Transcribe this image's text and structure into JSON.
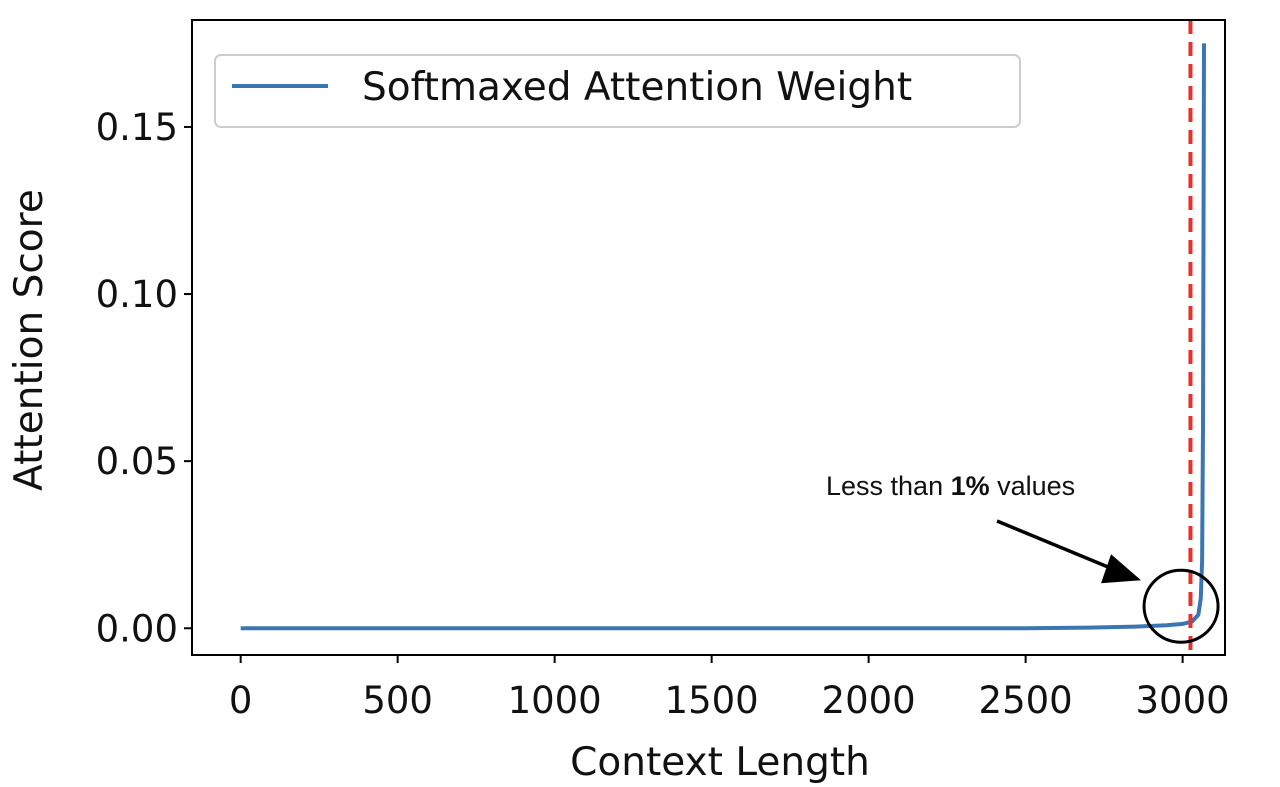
{
  "chart_data": {
    "type": "line",
    "title": "",
    "xlabel": "Context Length",
    "ylabel": "Attention Score",
    "xlim": [
      -155,
      3135
    ],
    "ylim": [
      -0.008,
      0.182
    ],
    "xticks": [
      0,
      500,
      1000,
      1500,
      2000,
      2500,
      3000
    ],
    "xtick_labels": [
      "0",
      "500",
      "1000",
      "1500",
      "2000",
      "2500",
      "3000"
    ],
    "yticks": [
      0.0,
      0.05,
      0.1,
      0.15
    ],
    "ytick_labels": [
      "0.00",
      "0.05",
      "0.10",
      "0.15"
    ],
    "grid": false,
    "legend": {
      "placement": "top-left",
      "entries": [
        "Softmaxed Attention Weight"
      ]
    },
    "series": [
      {
        "name": "Softmaxed Attention Weight",
        "color": "#3b76b3",
        "x": [
          0,
          2500,
          2700,
          2850,
          2950,
          3000,
          3030,
          3050,
          3058,
          3062,
          3065,
          3068
        ],
        "y": [
          0,
          0,
          0.0002,
          0.0005,
          0.0009,
          0.0013,
          0.002,
          0.004,
          0.009,
          0.02,
          0.06,
          0.175
        ]
      }
    ],
    "reference_line": {
      "orientation": "vertical",
      "x": 3025,
      "color": "#e8312a",
      "style": "dashed"
    },
    "annotation": {
      "text_prefix": "Less than ",
      "text_bold": "1%",
      "text_suffix": " values",
      "target": {
        "x": 2995,
        "y": 0.0066
      }
    }
  }
}
